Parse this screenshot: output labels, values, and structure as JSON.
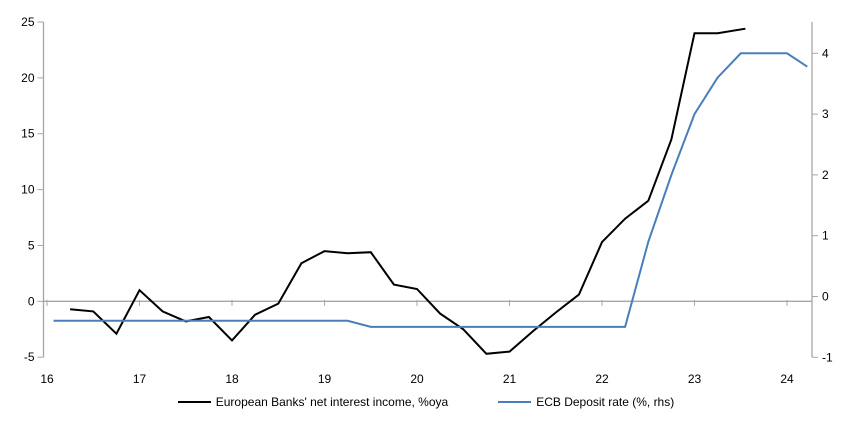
{
  "chart_data": {
    "type": "line",
    "x_axis": {
      "tick_labels": [
        "16",
        "17",
        "18",
        "19",
        "20",
        "21",
        "22",
        "23",
        "24"
      ],
      "ticks": [
        16,
        17,
        18,
        19,
        20,
        21,
        22,
        23,
        24
      ],
      "min": 16,
      "max": 24.27
    },
    "left_axis": {
      "ticks": [
        -5,
        0,
        5,
        10,
        15,
        20,
        25
      ],
      "min": -5,
      "max": 25
    },
    "right_axis": {
      "ticks": [
        -1,
        0,
        1,
        2,
        3,
        4
      ],
      "min": -1,
      "max": 4.45
    },
    "grid": "zero-line-only",
    "legend_position": "bottom",
    "series": [
      {
        "name": "European Banks' net interest income, %oya",
        "axis": "left",
        "color": "#000000",
        "x": [
          16.25,
          16.5,
          16.75,
          17.0,
          17.25,
          17.5,
          17.75,
          18.0,
          18.25,
          18.5,
          18.75,
          19.0,
          19.25,
          19.5,
          19.75,
          20.0,
          20.25,
          20.5,
          20.75,
          21.0,
          21.25,
          21.5,
          21.75,
          22.0,
          22.25,
          22.5,
          22.75,
          23.0,
          23.25,
          23.55
        ],
        "y": [
          -0.7,
          -0.9,
          -2.9,
          1.0,
          -0.9,
          -1.8,
          -1.4,
          -3.5,
          -1.2,
          -0.2,
          3.4,
          4.5,
          4.3,
          4.4,
          1.5,
          1.1,
          -1.1,
          -2.5,
          -4.7,
          -4.5,
          -2.7,
          -1.0,
          0.6,
          5.3,
          7.4,
          9.0,
          14.5,
          24.0,
          24.0,
          24.4
        ]
      },
      {
        "name": "ECB Deposit rate (%, rhs)",
        "axis": "right",
        "color": "#4a7ebb",
        "x": [
          16.07,
          19.25,
          19.5,
          22.25,
          22.5,
          22.75,
          23.0,
          23.25,
          23.5,
          24.0,
          24.22
        ],
        "y": [
          -0.4,
          -0.4,
          -0.5,
          -0.5,
          0.9,
          2.0,
          3.0,
          3.6,
          4.0,
          4.0,
          3.78
        ]
      }
    ]
  },
  "colors": {
    "background": "#ffffff",
    "axis": "#a6a6a6",
    "text": "#000000",
    "nii_line": "#000000",
    "ecb_line": "#4a7ebb"
  }
}
